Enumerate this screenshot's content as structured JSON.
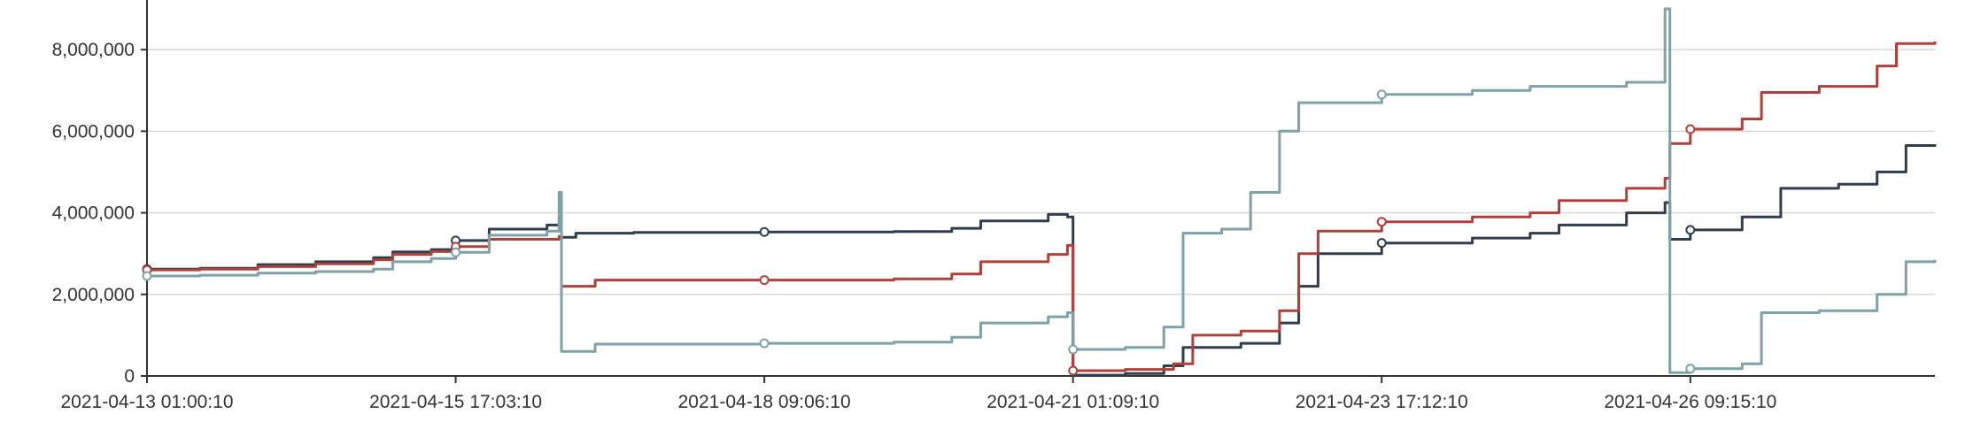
{
  "chart_data": {
    "type": "line",
    "title": "",
    "xlabel": "",
    "ylabel": "",
    "ylim": [
      0,
      9000000
    ],
    "grid": true,
    "legend": "none",
    "x_ticks": [
      "2021-04-13 01:00:10",
      "2021-04-15 17:03:10",
      "2021-04-18 09:06:10",
      "2021-04-21 01:09:10",
      "2021-04-23 17:12:10",
      "2021-04-26 09:15:10"
    ],
    "y_ticks": [
      "0",
      "2,000,000",
      "4,000,000",
      "6,000,000",
      "8,000,000"
    ],
    "y_tick_values": [
      0,
      2000000,
      4000000,
      6000000,
      8000000
    ],
    "x_start": "2021-04-13 01:00:10",
    "x_end": "2021-04-28 12:00:00",
    "colors": {
      "series1": "#2f3e4e",
      "series2": "#b0413a",
      "series3": "#7fa1a8"
    },
    "series": [
      {
        "color": "#2f3e4e",
        "points": [
          [
            "2021-04-13 01:00:10",
            2620000
          ],
          [
            "2021-04-13 12:00:00",
            2640000
          ],
          [
            "2021-04-14 00:00:00",
            2730000
          ],
          [
            "2021-04-14 12:00:00",
            2800000
          ],
          [
            "2021-04-15 00:00:00",
            2900000
          ],
          [
            "2021-04-15 04:00:00",
            3040000
          ],
          [
            "2021-04-15 12:00:00",
            3100000
          ],
          [
            "2021-04-15 17:03:10",
            3320000
          ],
          [
            "2021-04-16 00:00:00",
            3600000
          ],
          [
            "2021-04-16 12:00:00",
            3700000
          ],
          [
            "2021-04-16 14:30:00",
            3850000
          ],
          [
            "2021-04-16 15:00:00",
            3400000
          ],
          [
            "2021-04-16 18:00:00",
            3500000
          ],
          [
            "2021-04-17 06:00:00",
            3520000
          ],
          [
            "2021-04-18 09:06:10",
            3530000
          ],
          [
            "2021-04-19 12:00:00",
            3540000
          ],
          [
            "2021-04-20 00:00:00",
            3620000
          ],
          [
            "2021-04-20 06:00:00",
            3800000
          ],
          [
            "2021-04-20 20:00:00",
            3960000
          ],
          [
            "2021-04-21 00:00:00",
            3900000
          ],
          [
            "2021-04-21 01:09:10",
            20000
          ],
          [
            "2021-04-21 12:00:00",
            60000
          ],
          [
            "2021-04-21 20:00:00",
            250000
          ],
          [
            "2021-04-22 00:00:00",
            700000
          ],
          [
            "2021-04-22 12:00:00",
            800000
          ],
          [
            "2021-04-22 20:00:00",
            1300000
          ],
          [
            "2021-04-23 00:00:00",
            2200000
          ],
          [
            "2021-04-23 04:00:00",
            3000000
          ],
          [
            "2021-04-23 17:12:10",
            3260000
          ],
          [
            "2021-04-24 12:00:00",
            3380000
          ],
          [
            "2021-04-25 00:00:00",
            3500000
          ],
          [
            "2021-04-25 06:00:00",
            3700000
          ],
          [
            "2021-04-25 20:00:00",
            4000000
          ],
          [
            "2021-04-26 04:00:00",
            4250000
          ],
          [
            "2021-04-26 05:00:00",
            3350000
          ],
          [
            "2021-04-26 09:15:10",
            3580000
          ],
          [
            "2021-04-26 20:00:00",
            3900000
          ],
          [
            "2021-04-27 04:00:00",
            4600000
          ],
          [
            "2021-04-27 16:00:00",
            4700000
          ],
          [
            "2021-04-28 00:00:00",
            5000000
          ],
          [
            "2021-04-28 06:00:00",
            5650000
          ],
          [
            "2021-04-28 12:00:00",
            5680000
          ]
        ]
      },
      {
        "color": "#b0413a",
        "points": [
          [
            "2021-04-13 01:00:10",
            2600000
          ],
          [
            "2021-04-13 12:00:00",
            2620000
          ],
          [
            "2021-04-14 00:00:00",
            2680000
          ],
          [
            "2021-04-14 12:00:00",
            2750000
          ],
          [
            "2021-04-15 00:00:00",
            2850000
          ],
          [
            "2021-04-15 04:00:00",
            2980000
          ],
          [
            "2021-04-15 12:00:00",
            3050000
          ],
          [
            "2021-04-15 17:03:10",
            3170000
          ],
          [
            "2021-04-16 00:00:00",
            3350000
          ],
          [
            "2021-04-16 14:30:00",
            3420000
          ],
          [
            "2021-04-16 15:00:00",
            2200000
          ],
          [
            "2021-04-16 22:00:00",
            2350000
          ],
          [
            "2021-04-18 09:06:10",
            2350000
          ],
          [
            "2021-04-19 12:00:00",
            2380000
          ],
          [
            "2021-04-20 00:00:00",
            2500000
          ],
          [
            "2021-04-20 06:00:00",
            2800000
          ],
          [
            "2021-04-20 20:00:00",
            2980000
          ],
          [
            "2021-04-21 00:00:00",
            3200000
          ],
          [
            "2021-04-21 01:09:10",
            130000
          ],
          [
            "2021-04-21 12:00:00",
            160000
          ],
          [
            "2021-04-21 22:00:00",
            300000
          ],
          [
            "2021-04-22 02:00:00",
            1000000
          ],
          [
            "2021-04-22 12:00:00",
            1100000
          ],
          [
            "2021-04-22 20:00:00",
            1600000
          ],
          [
            "2021-04-23 00:00:00",
            3000000
          ],
          [
            "2021-04-23 04:00:00",
            3550000
          ],
          [
            "2021-04-23 17:12:10",
            3780000
          ],
          [
            "2021-04-24 12:00:00",
            3900000
          ],
          [
            "2021-04-25 00:00:00",
            4000000
          ],
          [
            "2021-04-25 06:00:00",
            4300000
          ],
          [
            "2021-04-25 20:00:00",
            4600000
          ],
          [
            "2021-04-26 04:00:00",
            4850000
          ],
          [
            "2021-04-26 05:00:00",
            5700000
          ],
          [
            "2021-04-26 09:15:10",
            6050000
          ],
          [
            "2021-04-26 20:00:00",
            6300000
          ],
          [
            "2021-04-27 00:00:00",
            6950000
          ],
          [
            "2021-04-27 12:00:00",
            7100000
          ],
          [
            "2021-04-28 00:00:00",
            7600000
          ],
          [
            "2021-04-28 04:00:00",
            8150000
          ],
          [
            "2021-04-28 12:00:00",
            8200000
          ]
        ]
      },
      {
        "color": "#7fa1a8",
        "points": [
          [
            "2021-04-13 01:00:10",
            2450000
          ],
          [
            "2021-04-13 12:00:00",
            2470000
          ],
          [
            "2021-04-14 00:00:00",
            2520000
          ],
          [
            "2021-04-14 12:00:00",
            2560000
          ],
          [
            "2021-04-15 00:00:00",
            2620000
          ],
          [
            "2021-04-15 04:00:00",
            2800000
          ],
          [
            "2021-04-15 12:00:00",
            2880000
          ],
          [
            "2021-04-15 17:03:10",
            3030000
          ],
          [
            "2021-04-16 00:00:00",
            3450000
          ],
          [
            "2021-04-16 12:00:00",
            3550000
          ],
          [
            "2021-04-16 14:30:00",
            4500000
          ],
          [
            "2021-04-16 15:00:00",
            600000
          ],
          [
            "2021-04-16 22:00:00",
            780000
          ],
          [
            "2021-04-18 09:06:10",
            800000
          ],
          [
            "2021-04-19 12:00:00",
            830000
          ],
          [
            "2021-04-20 00:00:00",
            950000
          ],
          [
            "2021-04-20 06:00:00",
            1300000
          ],
          [
            "2021-04-20 20:00:00",
            1450000
          ],
          [
            "2021-04-21 00:00:00",
            1550000
          ],
          [
            "2021-04-21 01:09:10",
            650000
          ],
          [
            "2021-04-21 12:00:00",
            700000
          ],
          [
            "2021-04-21 20:00:00",
            1200000
          ],
          [
            "2021-04-22 00:00:00",
            3500000
          ],
          [
            "2021-04-22 08:00:00",
            3600000
          ],
          [
            "2021-04-22 14:00:00",
            4500000
          ],
          [
            "2021-04-22 20:00:00",
            6000000
          ],
          [
            "2021-04-23 00:00:00",
            6700000
          ],
          [
            "2021-04-23 17:12:10",
            6900000
          ],
          [
            "2021-04-24 12:00:00",
            7000000
          ],
          [
            "2021-04-25 00:00:00",
            7100000
          ],
          [
            "2021-04-25 20:00:00",
            7200000
          ],
          [
            "2021-04-26 04:00:00",
            9000000
          ],
          [
            "2021-04-26 05:00:00",
            80000
          ],
          [
            "2021-04-26 09:15:10",
            180000
          ],
          [
            "2021-04-26 20:00:00",
            300000
          ],
          [
            "2021-04-27 00:00:00",
            1550000
          ],
          [
            "2021-04-27 12:00:00",
            1600000
          ],
          [
            "2021-04-28 00:00:00",
            2000000
          ],
          [
            "2021-04-28 06:00:00",
            2800000
          ],
          [
            "2021-04-28 12:00:00",
            2850000
          ]
        ]
      }
    ],
    "markers": [
      {
        "series": 0,
        "x": "2021-04-13 01:00:10",
        "y": 2620000
      },
      {
        "series": 0,
        "x": "2021-04-15 17:03:10",
        "y": 3320000
      },
      {
        "series": 0,
        "x": "2021-04-18 09:06:10",
        "y": 3530000
      },
      {
        "series": 0,
        "x": "2021-04-23 17:12:10",
        "y": 3260000
      },
      {
        "series": 0,
        "x": "2021-04-26 09:15:10",
        "y": 3580000
      },
      {
        "series": 1,
        "x": "2021-04-13 01:00:10",
        "y": 2600000
      },
      {
        "series": 1,
        "x": "2021-04-15 17:03:10",
        "y": 3170000
      },
      {
        "series": 1,
        "x": "2021-04-18 09:06:10",
        "y": 2350000
      },
      {
        "series": 1,
        "x": "2021-04-21 01:09:10",
        "y": 130000
      },
      {
        "series": 1,
        "x": "2021-04-23 17:12:10",
        "y": 3780000
      },
      {
        "series": 1,
        "x": "2021-04-26 09:15:10",
        "y": 6050000
      },
      {
        "series": 2,
        "x": "2021-04-13 01:00:10",
        "y": 2450000
      },
      {
        "series": 2,
        "x": "2021-04-15 17:03:10",
        "y": 3030000
      },
      {
        "series": 2,
        "x": "2021-04-18 09:06:10",
        "y": 800000
      },
      {
        "series": 2,
        "x": "2021-04-21 01:09:10",
        "y": 650000
      },
      {
        "series": 2,
        "x": "2021-04-23 17:12:10",
        "y": 6900000
      },
      {
        "series": 2,
        "x": "2021-04-26 09:15:10",
        "y": 180000
      }
    ]
  }
}
